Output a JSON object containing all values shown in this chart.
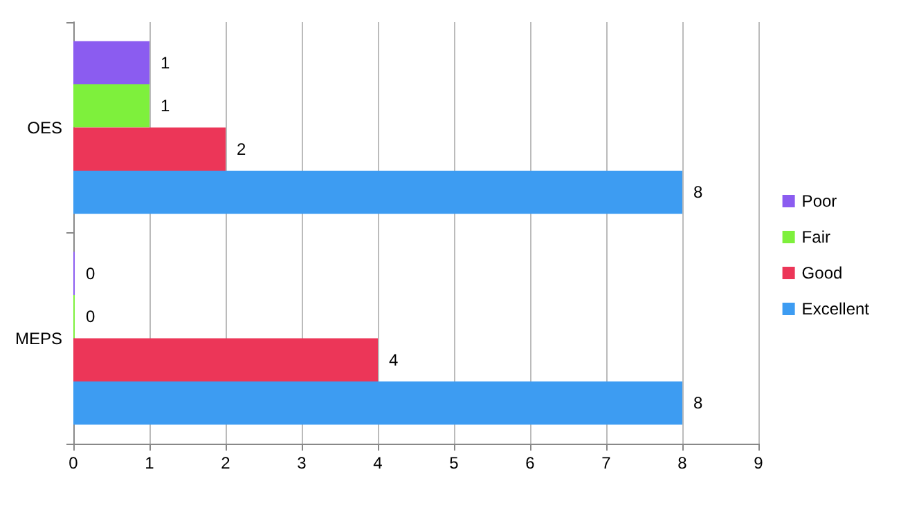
{
  "chart_data": {
    "type": "bar",
    "orientation": "horizontal",
    "categories": [
      "OES",
      "MEPS"
    ],
    "series": [
      {
        "name": "Poor",
        "color": "#8b5cf0",
        "values": [
          1,
          0
        ]
      },
      {
        "name": "Fair",
        "color": "#7ef03c",
        "values": [
          1,
          0
        ]
      },
      {
        "name": "Good",
        "color": "#ec3658",
        "values": [
          2,
          4
        ]
      },
      {
        "name": "Excellent",
        "color": "#3d9cf2",
        "values": [
          8,
          8
        ]
      }
    ],
    "xlim": [
      0,
      9
    ],
    "xticks": [
      0,
      1,
      2,
      3,
      4,
      5,
      6,
      7,
      8,
      9
    ],
    "grid": "x",
    "legend": "right",
    "data_labels": true
  }
}
